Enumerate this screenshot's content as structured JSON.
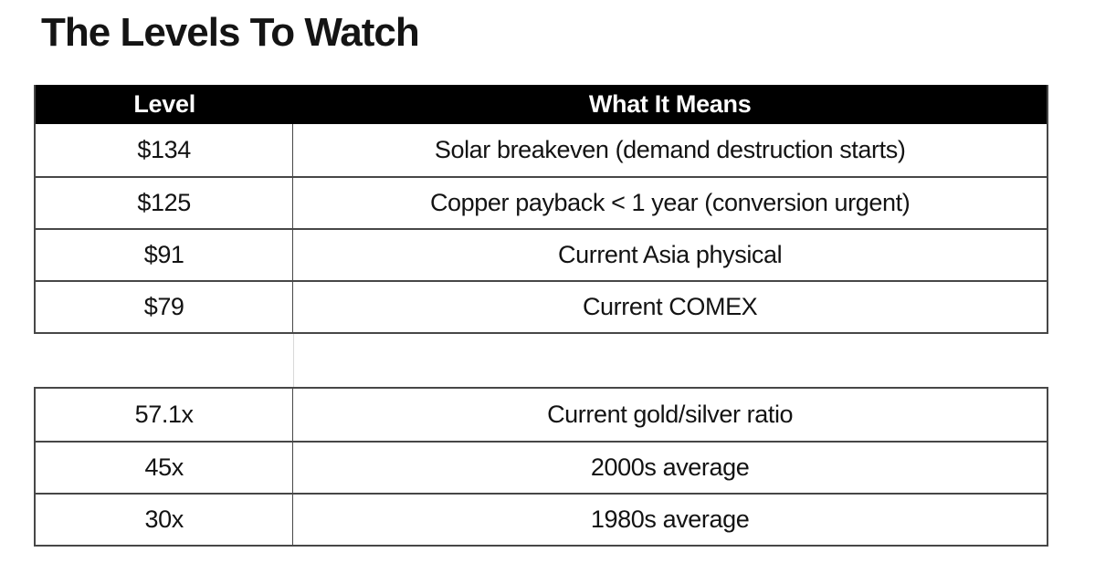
{
  "page": {
    "title": "The Levels To Watch"
  },
  "table": {
    "headers": [
      "Level",
      "What It Means"
    ],
    "rows_top": [
      {
        "level": "$134",
        "meaning": "Solar breakeven (demand destruction starts)"
      },
      {
        "level": "$125",
        "meaning": "Copper payback < 1 year (conversion urgent)"
      },
      {
        "level": "$91",
        "meaning": "Current Asia physical"
      },
      {
        "level": "$79",
        "meaning": "Current COMEX"
      }
    ],
    "rows_bottom": [
      {
        "level": "57.1x",
        "meaning": "Current gold/silver ratio"
      },
      {
        "level": "45x",
        "meaning": "2000s average"
      },
      {
        "level": "30x",
        "meaning": "1980s average"
      }
    ]
  },
  "colors": {
    "header_bg": "#000000",
    "header_text": "#ffffff",
    "border": "#474747",
    "faint_divider": "#d9d9d9",
    "body_text": "#131313",
    "background": "#ffffff"
  }
}
